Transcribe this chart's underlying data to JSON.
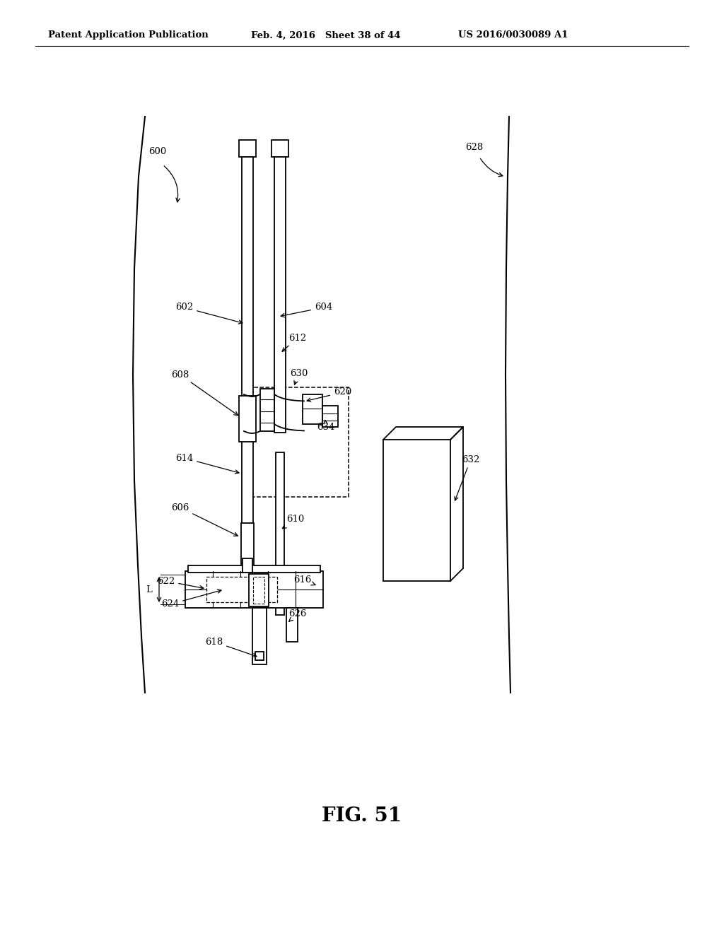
{
  "header_left": "Patent Application Publication",
  "header_mid": "Feb. 4, 2016   Sheet 38 of 44",
  "header_right": "US 2016/0030089 A1",
  "fig_label": "FIG. 51",
  "bg_color": "#ffffff",
  "lc": "#000000"
}
